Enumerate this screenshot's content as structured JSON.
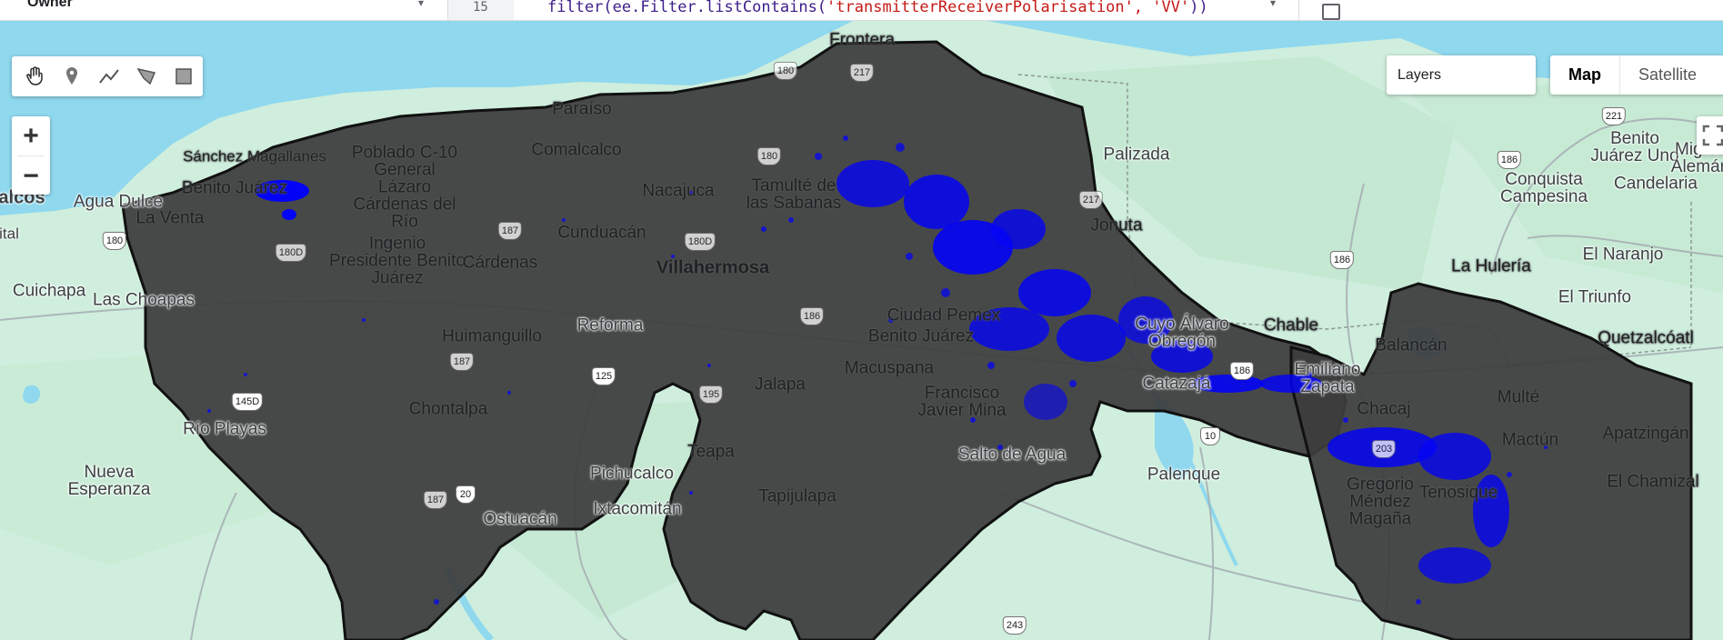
{
  "topbar": {
    "owner": "Owner",
    "line_number": "15",
    "code_prefix": "filter(ee.Filter.listContains(",
    "code_string": "'transmitterReceiverPolarisation', 'VV'",
    "code_suffix": "))"
  },
  "controls": {
    "tools": [
      "hand-icon",
      "marker-icon",
      "line-icon",
      "polygon-icon",
      "rectangle-icon"
    ],
    "zoom_in": "+",
    "zoom_out": "−",
    "layers": "Layers",
    "map_type": [
      "Map",
      "Satellite"
    ]
  },
  "map": {
    "colors": {
      "land": "#cfeedd",
      "water": "#8fd8ee",
      "aoi_fill": "#3c3c3c",
      "flood": "#0000ff",
      "road": "#a7b0b5"
    },
    "labels": [
      "Frontera",
      "Paraíso",
      "Sánchez Magallanes",
      "Poblado C-10 General Lázaro Cárdenas del Río",
      "Comalcalco",
      "Benito Juárez",
      "Agua Dulce",
      "La Venta",
      "Nacajuca",
      "Tamulté de las Sabanas",
      "Cunduacán",
      "Ingenio Presidente Benito Juárez",
      "Cárdenas",
      "Villahermosa",
      "Palizada",
      "Jonuta",
      "Cuichapa",
      "Las Choapas",
      "Reforma",
      "Huimanguillo",
      "Ciudad Pemex",
      "Benito Juárez",
      "Macuspana",
      "Francisco Javier Mina",
      "Chontalpa",
      "Jalapa",
      "Río Playas",
      "Teapa",
      "Nueva Esperanza",
      "Pichucalco",
      "Tapijulapa",
      "Ixtacomitán",
      "Ostuacán",
      "Salto de Agua",
      "Palenque",
      "Catazajá",
      "Emiliano Zapata",
      "Cuyo Álvaro Obregón",
      "Chable",
      "Balancán",
      "Chacaj",
      "Multé",
      "Mactún",
      "Tenosique",
      "Gregorio Méndez Magaña",
      "La Hulería",
      "El Naranjo",
      "El Triunfo",
      "Quetzalcóatl",
      "Apatzingán",
      "El Chamizal",
      "Conquista Campesina",
      "Candelaria",
      "Benito Juárez Uno",
      "Miguel Alemán",
      "alcos",
      "ital"
    ],
    "shields": [
      "180",
      "217",
      "180",
      "217",
      "187",
      "180D",
      "180D",
      "180",
      "187",
      "186",
      "125",
      "145D",
      "195",
      "187",
      "20",
      "186",
      "186",
      "10",
      "203",
      "243",
      "221",
      "186",
      "186"
    ]
  }
}
